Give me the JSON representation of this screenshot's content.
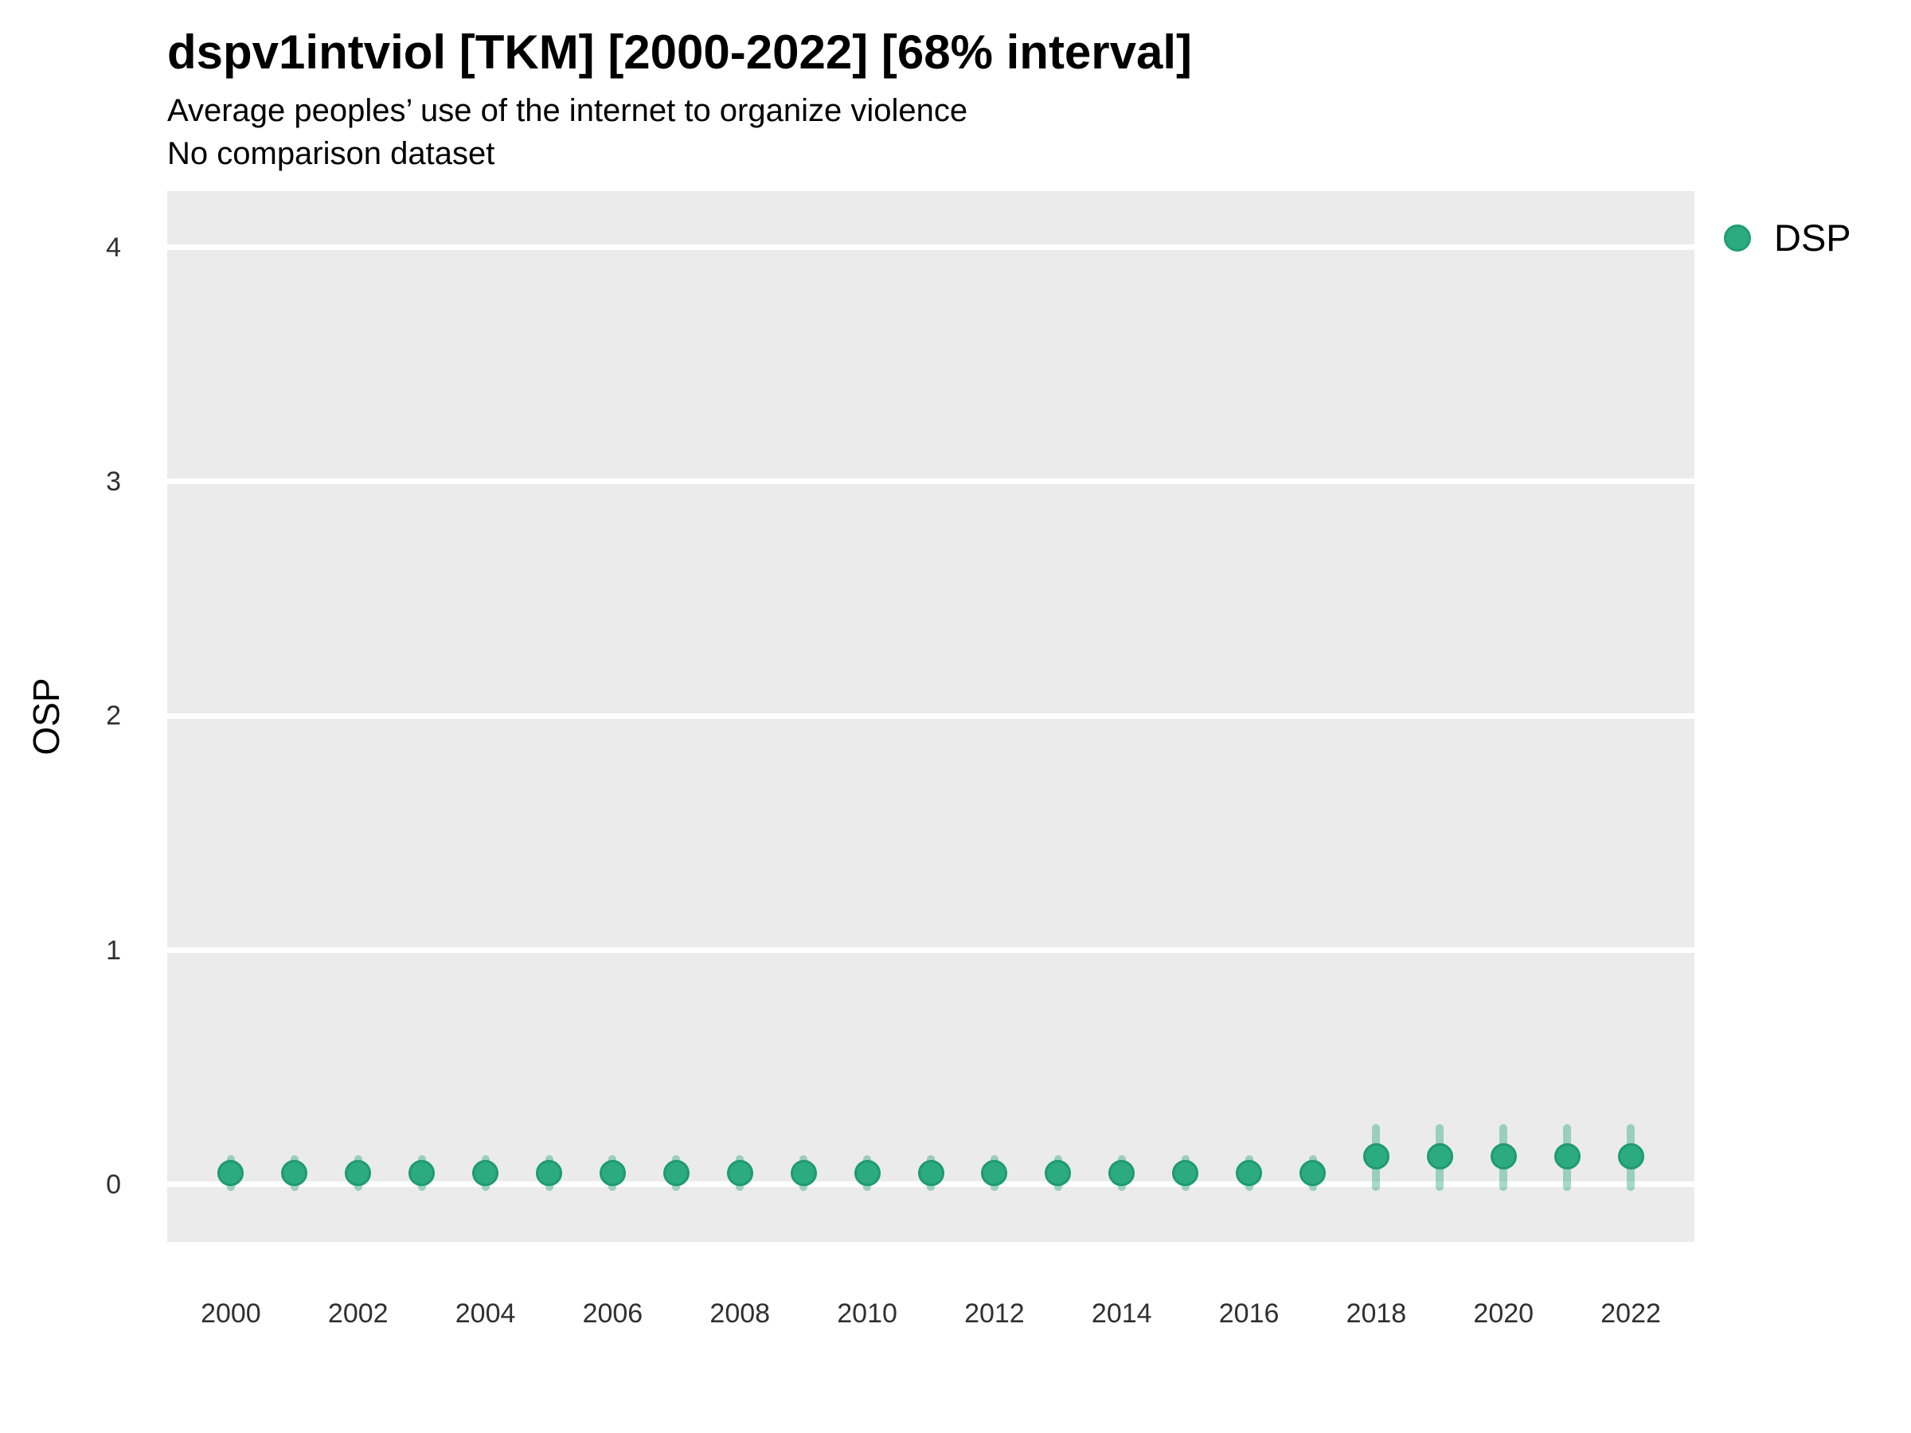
{
  "header": {
    "title": "dspv1intviol [TKM] [2000-2022] [68% interval]",
    "subtitle": "Average peoples’ use of the internet to organize violence",
    "note": "No comparison dataset"
  },
  "legend": {
    "position": "right",
    "items": [
      {
        "label": "DSP",
        "marker": "circle",
        "color": "#2aa87e"
      }
    ]
  },
  "axes": {
    "y_title": "OSP",
    "y_tick_labels": [
      "0",
      "1",
      "2",
      "3",
      "4"
    ],
    "x_tick_labels": [
      "2000",
      "2002",
      "2004",
      "2006",
      "2008",
      "2010",
      "2012",
      "2014",
      "2016",
      "2018",
      "2020",
      "2022"
    ]
  },
  "colors": {
    "panel_background": "#ebebeb",
    "gridline": "#ffffff",
    "point_fill": "#2cab80",
    "point_border": "#1f9a71",
    "interval_bar": "rgba(42,168,126,0.42)",
    "tick_text": "#303030",
    "text": "#000000"
  },
  "chart_data": {
    "type": "scatter",
    "title": "dspv1intviol [TKM] [2000-2022] [68% interval]",
    "subtitle": "Average peoples’ use of the internet to organize violence",
    "note": "No comparison dataset",
    "interval": "68%",
    "xlabel": "",
    "ylabel": "OSP",
    "xlim": [
      1999,
      2023
    ],
    "ylim": [
      -0.245,
      4.24
    ],
    "yticks": [
      0,
      1,
      2,
      3,
      4
    ],
    "xticks": [
      2000,
      2002,
      2004,
      2006,
      2008,
      2010,
      2012,
      2014,
      2016,
      2018,
      2020,
      2022
    ],
    "grid": "horizontal-major-only",
    "legend_position": "right",
    "series": [
      {
        "name": "DSP",
        "color": "#2aa87e",
        "interval_color": "rgba(42,168,126,0.42)",
        "x": [
          2000,
          2001,
          2002,
          2003,
          2004,
          2005,
          2006,
          2007,
          2008,
          2009,
          2010,
          2011,
          2012,
          2013,
          2014,
          2015,
          2016,
          2017,
          2018,
          2019,
          2020,
          2021,
          2022
        ],
        "y": [
          0.05,
          0.05,
          0.05,
          0.05,
          0.05,
          0.05,
          0.05,
          0.05,
          0.05,
          0.05,
          0.05,
          0.05,
          0.05,
          0.05,
          0.05,
          0.05,
          0.05,
          0.05,
          0.12,
          0.12,
          0.12,
          0.12,
          0.12
        ],
        "lo": [
          -0.01,
          -0.01,
          -0.01,
          -0.01,
          -0.01,
          -0.01,
          -0.01,
          -0.01,
          -0.01,
          -0.01,
          -0.01,
          -0.01,
          -0.01,
          -0.01,
          -0.01,
          -0.01,
          -0.01,
          -0.01,
          -0.01,
          -0.01,
          -0.01,
          -0.01,
          -0.01
        ],
        "hi": [
          0.11,
          0.11,
          0.11,
          0.11,
          0.11,
          0.11,
          0.11,
          0.11,
          0.11,
          0.11,
          0.11,
          0.11,
          0.11,
          0.11,
          0.11,
          0.11,
          0.11,
          0.11,
          0.24,
          0.24,
          0.24,
          0.24,
          0.24
        ]
      }
    ]
  }
}
